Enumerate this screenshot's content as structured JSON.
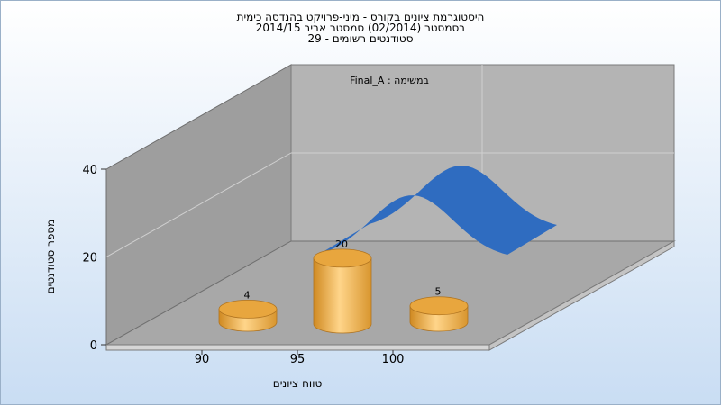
{
  "chart_data": {
    "type": "bar",
    "title": "היסטוגרמת ציונים בקורס - מיני-פרויקט בהנדסה כימית",
    "subtitle": "בסמסטר  (02/2014)  סמסטר אביב 2014/15",
    "subtitle2": "סטודנטים רשומים - 29",
    "xlabel": "טווח ציונים",
    "ylabel": "מספר סטודנטים",
    "categories": [
      "90",
      "95",
      "100"
    ],
    "values": [
      4,
      20,
      5
    ],
    "ylim": [
      0,
      40
    ],
    "yticks": [
      "0",
      "20",
      "40"
    ],
    "curve_peak_y": 40,
    "legend": "Final_A : במשימה",
    "grid": true,
    "colors": {
      "bar": "#F5B54A",
      "curve": "#2F6CC0",
      "bg_top": "#FFFFFF",
      "bg_bottom": "#C9DDF3"
    }
  }
}
